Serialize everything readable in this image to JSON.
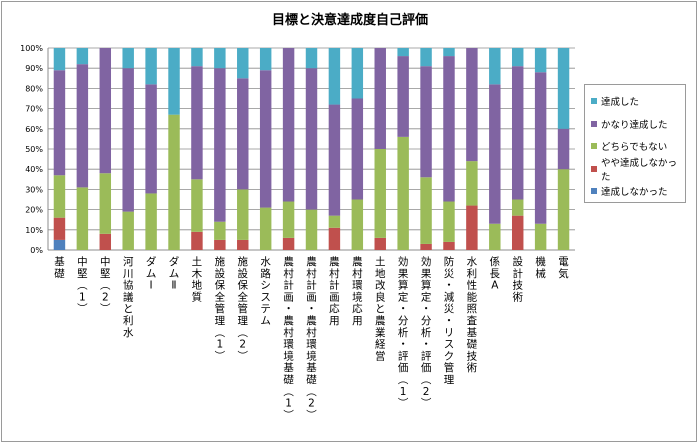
{
  "chart_data": {
    "type": "bar",
    "stacked": true,
    "title": "目標と決意達成度自己評価",
    "xlabel": "",
    "ylabel": "",
    "ylim": [
      0,
      100
    ],
    "y_ticks": [
      "0%",
      "10%",
      "20%",
      "30%",
      "40%",
      "50%",
      "60%",
      "70%",
      "80%",
      "90%",
      "100%"
    ],
    "grid": true,
    "legend_position": "right",
    "categories": [
      "基礎",
      "中堅(1)",
      "中堅(2)",
      "河川協議と利水",
      "ダムⅠ",
      "ダムⅡ",
      "土木地質",
      "施設保全管理(1)",
      "施設保全管理(2)",
      "水路システム",
      "農村計画・農村環境 基礎(1)",
      "農村計画・農村環境 基礎(2)",
      "農村計画応用",
      "農村環境応用",
      "土地改良と農業経営",
      "効果算定・分析・評価(1)",
      "効果算定・分析・評価(2)",
      "防災・減災・リスク管理",
      "水利性能照査基礎技術",
      "係長A",
      "設計技術",
      "機械",
      "電気"
    ],
    "series": [
      {
        "name": "達成しなかった",
        "color": "#4F81BD",
        "values": [
          5,
          0,
          0,
          0,
          0,
          0,
          0,
          0,
          0,
          0,
          0,
          0,
          0,
          0,
          0,
          0,
          0,
          0,
          0,
          0,
          0,
          0,
          0
        ]
      },
      {
        "name": "やや達成しなかった",
        "color": "#C0504D",
        "values": [
          11,
          0,
          8,
          0,
          0,
          0,
          9,
          5,
          5,
          0,
          6,
          0,
          11,
          0,
          6,
          0,
          3,
          4,
          22,
          0,
          17,
          0,
          0
        ]
      },
      {
        "name": "どちらでもない",
        "color": "#9BBB59",
        "values": [
          21,
          31,
          30,
          19,
          28,
          67,
          26,
          9,
          25,
          21,
          18,
          20,
          6,
          25,
          44,
          56,
          33,
          20,
          22,
          13,
          8,
          13,
          40
        ]
      },
      {
        "name": "かなり達成した",
        "color": "#8064A2",
        "values": [
          52,
          61,
          62,
          71,
          54,
          0,
          56,
          76,
          55,
          68,
          76,
          70,
          55,
          50,
          50,
          40,
          55,
          72,
          56,
          69,
          66,
          75,
          20
        ]
      },
      {
        "name": "達成した",
        "color": "#4BACC6",
        "values": [
          11,
          8,
          0,
          10,
          18,
          33,
          9,
          10,
          15,
          11,
          0,
          10,
          28,
          25,
          0,
          4,
          9,
          4,
          0,
          18,
          9,
          12,
          40
        ]
      }
    ]
  }
}
